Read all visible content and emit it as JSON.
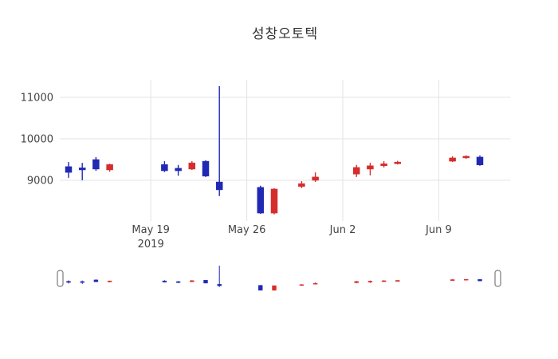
{
  "chart_data": {
    "type": "candlestick",
    "title": "성창오토텍",
    "xlabel": "",
    "ylabel": "",
    "ylim": [
      8020,
      11420
    ],
    "grid": true,
    "legend": false,
    "rangeslider": true,
    "increasing_color": "#d62c2c",
    "decreasing_color": "#2028b4",
    "grid_color": "#e3e3e3",
    "text_color": "#444444",
    "yticks": [
      9000,
      10000,
      11000
    ],
    "xticks": [
      {
        "date": "2019-05-19",
        "label": "May 19",
        "sublabel": "2019"
      },
      {
        "date": "2019-05-26",
        "label": "May 26",
        "sublabel": ""
      },
      {
        "date": "2019-06-02",
        "label": "Jun 2",
        "sublabel": ""
      },
      {
        "date": "2019-06-09",
        "label": "Jun 9",
        "sublabel": ""
      }
    ],
    "candles": [
      {
        "date": "2019-05-13",
        "open": 9330,
        "high": 9440,
        "low": 9060,
        "close": 9190
      },
      {
        "date": "2019-05-14",
        "open": 9300,
        "high": 9420,
        "low": 9000,
        "close": 9250
      },
      {
        "date": "2019-05-15",
        "open": 9500,
        "high": 9560,
        "low": 9230,
        "close": 9270
      },
      {
        "date": "2019-05-16",
        "open": 9250,
        "high": 9400,
        "low": 9210,
        "close": 9380
      },
      {
        "date": "2019-05-20",
        "open": 9380,
        "high": 9460,
        "low": 9200,
        "close": 9230
      },
      {
        "date": "2019-05-21",
        "open": 9290,
        "high": 9370,
        "low": 9110,
        "close": 9230
      },
      {
        "date": "2019-05-22",
        "open": 9270,
        "high": 9460,
        "low": 9250,
        "close": 9420
      },
      {
        "date": "2019-05-23",
        "open": 9460,
        "high": 9480,
        "low": 9080,
        "close": 9100
      },
      {
        "date": "2019-05-24",
        "open": 8960,
        "high": 11270,
        "low": 8620,
        "close": 8770
      },
      {
        "date": "2019-05-27",
        "open": 8830,
        "high": 8870,
        "low": 8190,
        "close": 8210
      },
      {
        "date": "2019-05-28",
        "open": 8210,
        "high": 8810,
        "low": 8180,
        "close": 8790
      },
      {
        "date": "2019-05-30",
        "open": 8850,
        "high": 8980,
        "low": 8810,
        "close": 8920
      },
      {
        "date": "2019-05-31",
        "open": 9000,
        "high": 9190,
        "low": 8960,
        "close": 9080
      },
      {
        "date": "2019-06-03",
        "open": 9150,
        "high": 9370,
        "low": 9080,
        "close": 9310
      },
      {
        "date": "2019-06-04",
        "open": 9270,
        "high": 9420,
        "low": 9120,
        "close": 9350
      },
      {
        "date": "2019-06-05",
        "open": 9350,
        "high": 9460,
        "low": 9310,
        "close": 9400
      },
      {
        "date": "2019-06-06",
        "open": 9400,
        "high": 9470,
        "low": 9380,
        "close": 9440
      },
      {
        "date": "2019-06-10",
        "open": 9460,
        "high": 9580,
        "low": 9440,
        "close": 9540
      },
      {
        "date": "2019-06-11",
        "open": 9540,
        "high": 9600,
        "low": 9520,
        "close": 9580
      },
      {
        "date": "2019-06-12",
        "open": 9560,
        "high": 9600,
        "low": 9350,
        "close": 9370
      }
    ]
  }
}
